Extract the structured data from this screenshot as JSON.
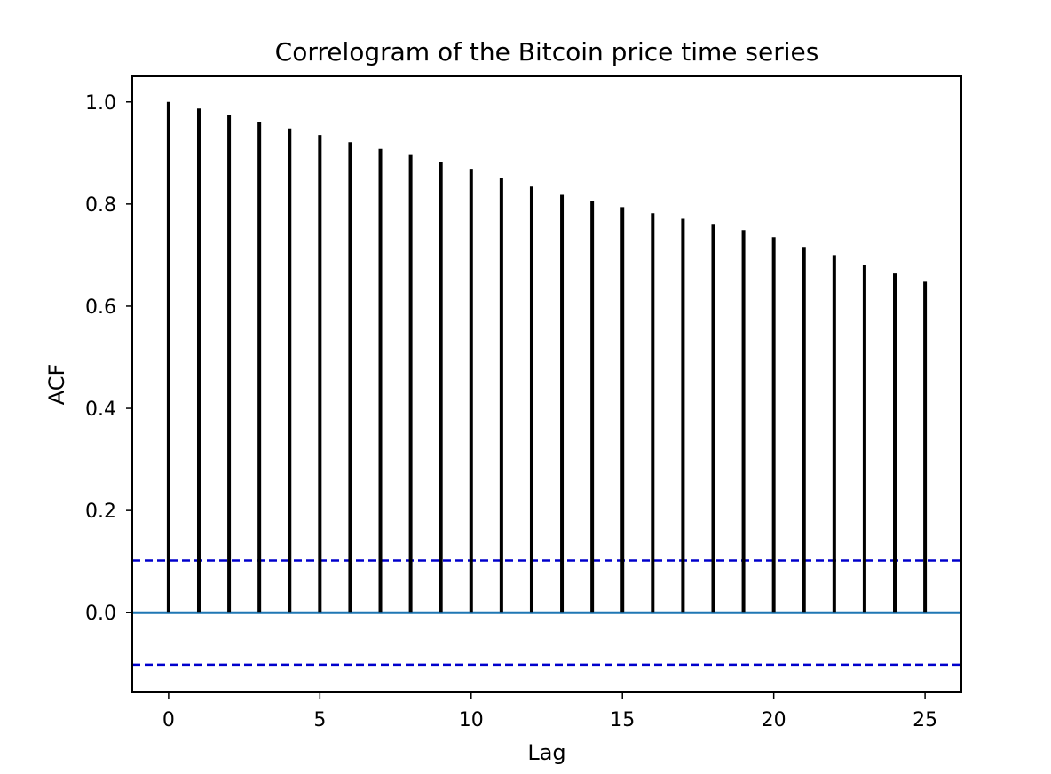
{
  "chart_data": {
    "type": "bar",
    "title": "Correlogram of the Bitcoin price time series",
    "xlabel": "Lag",
    "ylabel": "ACF",
    "x": [
      0,
      1,
      2,
      3,
      4,
      5,
      6,
      7,
      8,
      9,
      10,
      11,
      12,
      13,
      14,
      15,
      16,
      17,
      18,
      19,
      20,
      21,
      22,
      23,
      24,
      25
    ],
    "values": [
      1.0,
      0.987,
      0.975,
      0.961,
      0.948,
      0.935,
      0.921,
      0.908,
      0.896,
      0.883,
      0.869,
      0.851,
      0.834,
      0.818,
      0.805,
      0.794,
      0.782,
      0.771,
      0.761,
      0.749,
      0.735,
      0.716,
      0.7,
      0.68,
      0.664,
      0.648
    ],
    "xlim": [
      -1.2,
      26.2
    ],
    "ylim": [
      -0.156,
      1.05
    ],
    "xticks": [
      "0",
      "5",
      "10",
      "15",
      "20",
      "25"
    ],
    "yticks": [
      "0.0",
      "0.2",
      "0.4",
      "0.6",
      "0.8",
      "1.0"
    ],
    "confidence_band": 0.102,
    "grid": false,
    "colors": {
      "stems": "#000000",
      "zero_line": "#1f77b4",
      "confidence_lines": "#0000cc"
    }
  }
}
